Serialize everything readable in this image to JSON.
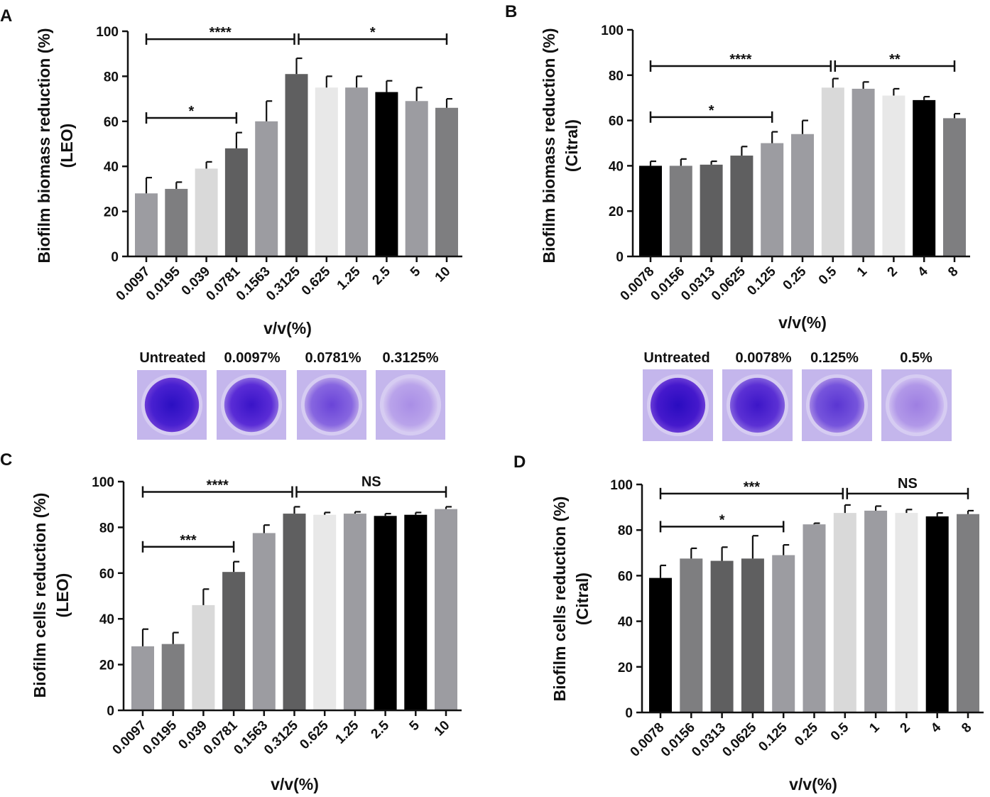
{
  "chart_data": [
    {
      "panel": "A",
      "type": "bar",
      "ylabel_line1": "Biofilm biomass reduction (%)",
      "ylabel_line2": "(LEO)",
      "xlabel": "v/v(%)",
      "ylim": [
        0,
        100
      ],
      "yticks": [
        "0",
        "20",
        "40",
        "60",
        "80",
        "100"
      ],
      "categories": [
        "0.0097",
        "0.0195",
        "0.039",
        "0.0781",
        "0.1563",
        "0.3125",
        "0.625",
        "1.25",
        "2.5",
        "5",
        "10"
      ],
      "values": [
        28,
        30,
        39,
        48,
        60,
        81,
        75,
        75,
        73,
        69,
        66
      ],
      "errors": [
        7,
        3,
        3,
        7,
        9,
        7,
        5,
        5,
        5,
        6,
        4
      ],
      "colors": [
        "#9c9ca1",
        "#7e7e80",
        "#d9d9d9",
        "#5f5f60",
        "#9c9ca1",
        "#5f5f60",
        "#e8e8e8",
        "#9c9ca1",
        "#000000",
        "#9c9ca1",
        "#7e7e80"
      ],
      "significance": [
        {
          "from": 0,
          "to": 5,
          "level": 96.5,
          "label": "****"
        },
        {
          "from": 5,
          "to": 10,
          "level": 96.5,
          "label": "*"
        },
        {
          "from": 0,
          "to": 3,
          "level": 61.5,
          "label": "*"
        }
      ],
      "wells": [
        "Untreated",
        "0.0097%",
        "0.0781%",
        "0.3125%"
      ]
    },
    {
      "panel": "B",
      "type": "bar",
      "ylabel_line1": "Biofilm biomass reduction (%)",
      "ylabel_line2": "(Citral)",
      "xlabel": "v/v(%)",
      "ylim": [
        0,
        100
      ],
      "yticks": [
        "0",
        "20",
        "40",
        "60",
        "80",
        "100"
      ],
      "categories": [
        "0.0078",
        "0.0156",
        "0.0313",
        "0.0625",
        "0.125",
        "0.25",
        "0.5",
        "1",
        "2",
        "4",
        "8"
      ],
      "values": [
        40,
        40,
        40.5,
        44.5,
        50,
        54,
        74.5,
        74,
        71,
        69,
        61
      ],
      "errors": [
        2,
        3,
        1.5,
        4,
        5,
        6,
        4,
        3,
        3,
        1.5,
        2
      ],
      "colors": [
        "#000000",
        "#7e7e80",
        "#5f5f60",
        "#5f5f60",
        "#9c9ca1",
        "#9c9ca1",
        "#d9d9d9",
        "#9c9ca1",
        "#e8e8e8",
        "#000000",
        "#7e7e80"
      ],
      "significance": [
        {
          "from": 0,
          "to": 6,
          "level": 84,
          "label": "****"
        },
        {
          "from": 6,
          "to": 10,
          "level": 84,
          "label": "**"
        },
        {
          "from": 0,
          "to": 4,
          "level": 61.5,
          "label": "*"
        }
      ],
      "wells": [
        "Untreated",
        "0.0078%",
        "0.125%",
        "0.5%"
      ]
    },
    {
      "panel": "C",
      "type": "bar",
      "ylabel_line1": "Biofilm cells reduction (%)",
      "ylabel_line2": "(LEO)",
      "xlabel": "v/v(%)",
      "ylim": [
        0,
        100
      ],
      "yticks": [
        "0",
        "20",
        "40",
        "60",
        "80",
        "100"
      ],
      "categories": [
        "0.0097",
        "0.0195",
        "0.039",
        "0.0781",
        "0.1563",
        "0.3125",
        "0.625",
        "1.25",
        "2.5",
        "5",
        "10"
      ],
      "values": [
        28,
        29,
        46,
        60.5,
        77.5,
        86,
        85.5,
        86,
        85,
        85.5,
        88
      ],
      "errors": [
        7.5,
        5,
        7,
        4.5,
        3.5,
        3,
        1,
        0.8,
        1,
        1,
        1
      ],
      "colors": [
        "#9c9ca1",
        "#7e7e80",
        "#d9d9d9",
        "#5f5f60",
        "#9c9ca1",
        "#5f5f60",
        "#e8e8e8",
        "#9c9ca1",
        "#000000",
        "#000000",
        "#9c9ca1"
      ],
      "significance": [
        {
          "from": 0,
          "to": 5,
          "level": 95.5,
          "label": "****"
        },
        {
          "from": 5,
          "to": 10,
          "level": 95.5,
          "label": "NS"
        },
        {
          "from": 0,
          "to": 3,
          "level": 71.5,
          "label": "***"
        }
      ]
    },
    {
      "panel": "D",
      "type": "bar",
      "ylabel_line1": "Biofilm cells reduction (%)",
      "ylabel_line2": "(Citral)",
      "xlabel": "v/v(%)",
      "ylim": [
        0,
        100
      ],
      "yticks": [
        "0",
        "20",
        "40",
        "60",
        "80",
        "100"
      ],
      "categories": [
        "0.0078",
        "0.0156",
        "0.0313",
        "0.0625",
        "0.125",
        "0.25",
        "0.5",
        "1",
        "2",
        "4",
        "8"
      ],
      "values": [
        59,
        67.5,
        66.5,
        67.5,
        69,
        82.5,
        87.5,
        88.5,
        87.5,
        86,
        87
      ],
      "errors": [
        5.5,
        4.5,
        6,
        10,
        4.5,
        0.5,
        3.5,
        2,
        1.5,
        1.5,
        1.5
      ],
      "colors": [
        "#000000",
        "#7e7e80",
        "#5f5f60",
        "#5f5f60",
        "#9c9ca1",
        "#9c9ca1",
        "#d9d9d9",
        "#9c9ca1",
        "#e8e8e8",
        "#000000",
        "#7e7e80"
      ],
      "significance": [
        {
          "from": 0,
          "to": 6,
          "level": 96,
          "label": "***"
        },
        {
          "from": 6,
          "to": 10,
          "level": 96,
          "label": "NS"
        },
        {
          "from": 0,
          "to": 4,
          "level": 81.5,
          "label": "*"
        }
      ]
    }
  ]
}
